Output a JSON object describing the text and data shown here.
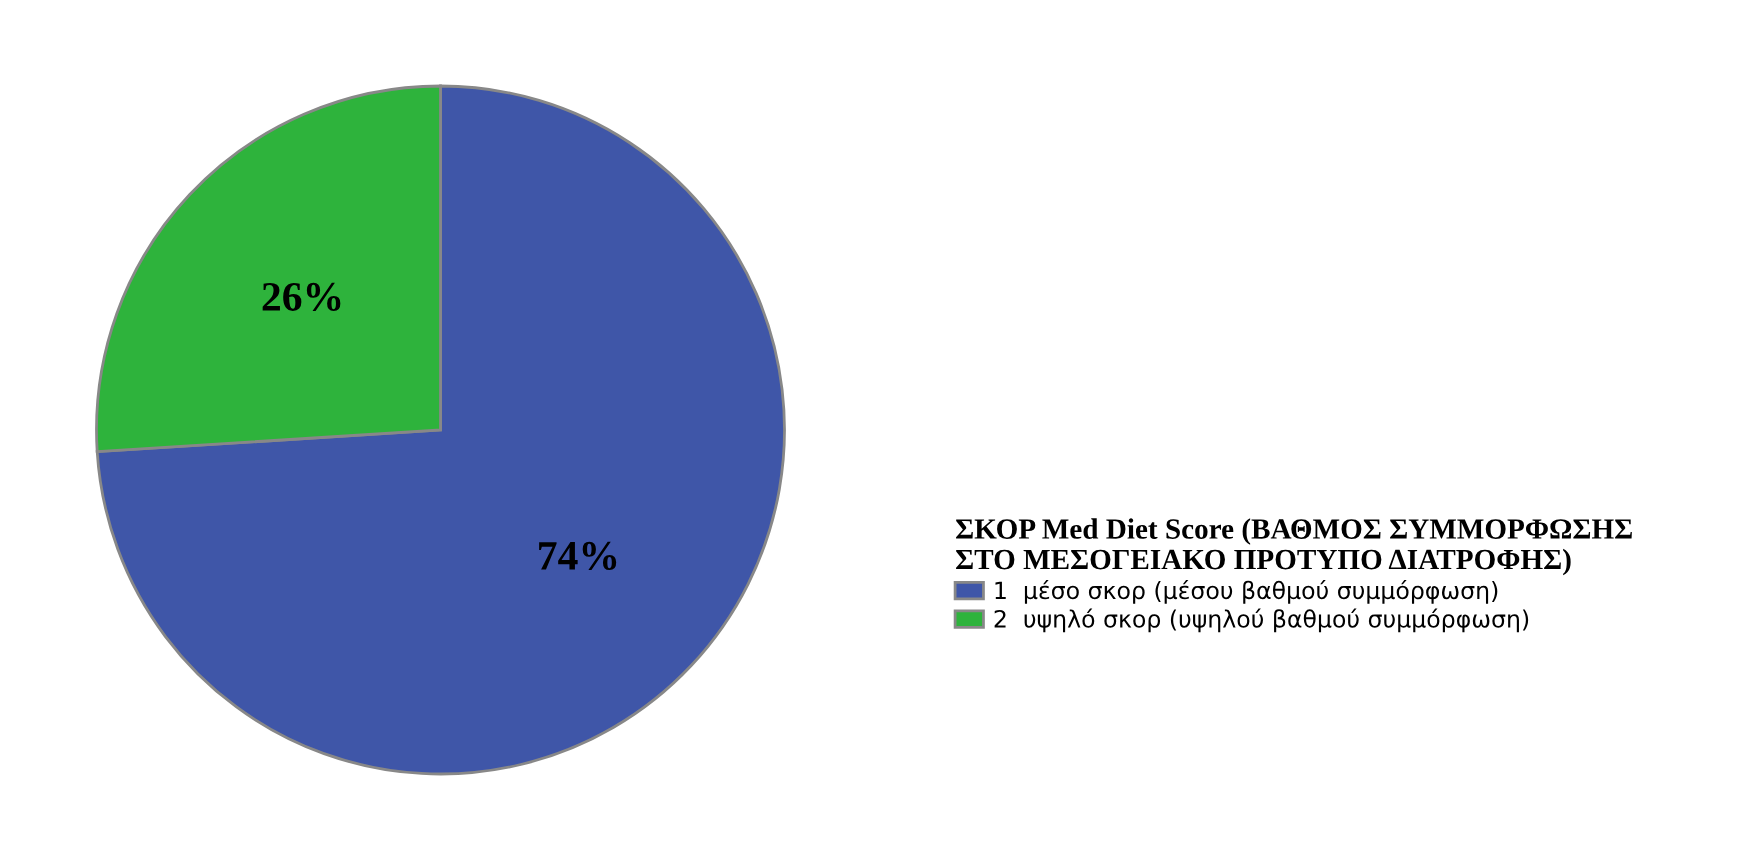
{
  "chart_data": {
    "type": "pie",
    "legend_title": "ΣΚΟΡ Med Diet Score (ΒΑΘΜΟΣ ΣΥΜΜΟΡΦΩΣΗΣ\nΣΤΟ ΜΕΣΟΓΕΙΑΚΟ ΠΡΟΤΥΠΟ ΔΙΑΤΡΟΦΗΣ)",
    "categories": [
      "1  μέσο σκορ (μέσου βαθμού συμμόρφωση)",
      "2  υψηλό σκορ (υψηλού βαθμού συμμόρφωση)"
    ],
    "values": [
      74,
      26
    ],
    "value_labels": [
      "74%",
      "26%"
    ],
    "colors": [
      "#3f56a8",
      "#2eb33c"
    ],
    "legend": "right"
  }
}
